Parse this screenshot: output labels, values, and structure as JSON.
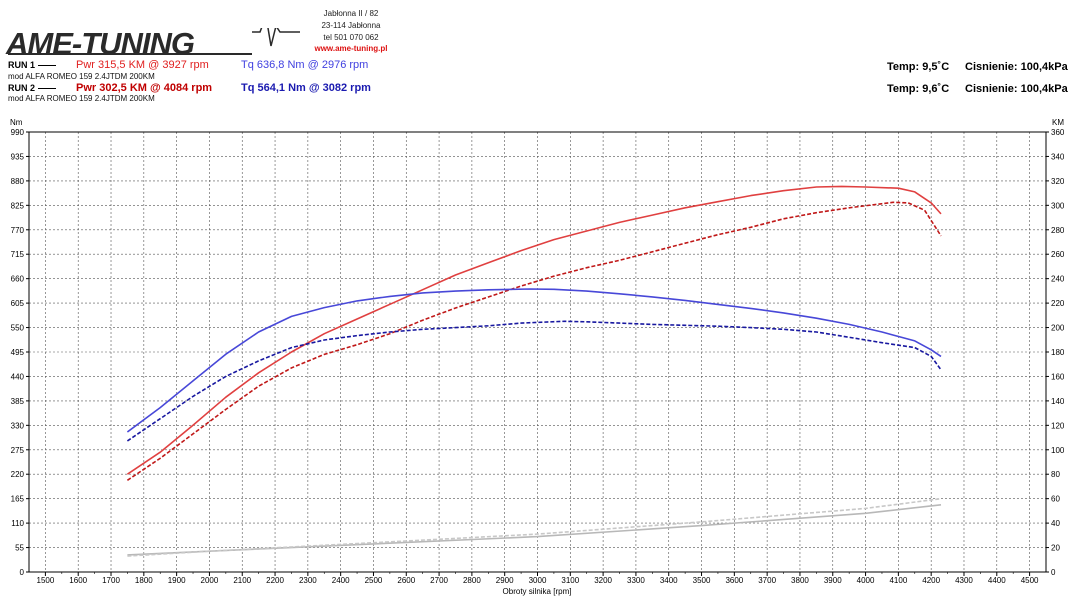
{
  "header": {
    "logo_text": "AME-TUNING",
    "address_line1": "Jabłonna II / 82",
    "address_line2": "23-114 Jabłonna",
    "phone": "tel 501 070 062",
    "website": "www.ame-tuning.pl"
  },
  "runs": [
    {
      "label": "RUN 1",
      "pwr": "Pwr  315,5 KM @ 3927 rpm",
      "tq": "Tq 636,8 Nm @ 2976 rpm",
      "car": "mod ALFA ROMEO 159 2.4JTDM 200KM",
      "temp": "Temp: 9,5˚C",
      "pressure": "Cisnienie: 100,4kPa"
    },
    {
      "label": "RUN 2",
      "pwr": "Pwr  302,5 KM @ 4084 rpm",
      "tq": "Tq 564,1 Nm @ 3082 rpm",
      "car": "mod ALFA ROMEO 159 2.4JTDM 200KM",
      "temp": "Temp: 9,6˚C",
      "pressure": "Cisnienie: 100,4kPa"
    }
  ],
  "colors": {
    "power_run1": "#e04040",
    "power_run2": "#c01818",
    "torque_run1": "#4848d8",
    "torque_run2": "#1818a0",
    "loss_run1": "#b8b8b8",
    "loss_run2": "#c8c8c8"
  },
  "chart_data": {
    "type": "line",
    "xlabel": "Obroty silnika [rpm]",
    "ylabel_left": "Nm",
    "ylabel_right": "KM",
    "xlim": [
      1450,
      4550
    ],
    "ylim_left": [
      0,
      990
    ],
    "ylim_right": [
      0,
      360
    ],
    "x_ticks": [
      1500,
      1600,
      1700,
      1800,
      1900,
      2000,
      2100,
      2200,
      2300,
      2400,
      2500,
      2600,
      2700,
      2800,
      2900,
      3000,
      3100,
      3200,
      3300,
      3400,
      3500,
      3600,
      3700,
      3800,
      3900,
      4000,
      4100,
      4200,
      4300,
      4400,
      4500
    ],
    "y_ticks_left": [
      0,
      55,
      110,
      165,
      220,
      275,
      330,
      385,
      440,
      495,
      550,
      605,
      660,
      715,
      770,
      825,
      880,
      935,
      990
    ],
    "y_ticks_right": [
      0,
      20,
      40,
      60,
      80,
      100,
      120,
      140,
      160,
      180,
      200,
      220,
      240,
      260,
      280,
      300,
      320,
      340,
      360
    ],
    "grid": true,
    "series": [
      {
        "name": "Pwr RUN 1",
        "axis": "right",
        "style": "solid",
        "color_key": "power_run1",
        "x": [
          1750,
          1850,
          1950,
          2050,
          2150,
          2250,
          2350,
          2450,
          2550,
          2650,
          2750,
          2850,
          2950,
          3050,
          3150,
          3250,
          3350,
          3450,
          3550,
          3650,
          3750,
          3850,
          3927,
          4000,
          4100,
          4150,
          4200,
          4230
        ],
        "y": [
          80,
          98,
          120,
          143,
          163,
          180,
          195,
          207,
          219,
          231,
          243,
          253,
          263,
          272,
          279,
          286,
          292,
          298,
          303,
          308,
          312,
          315,
          315.5,
          315,
          314,
          311,
          302,
          293
        ]
      },
      {
        "name": "Pwr RUN 2",
        "axis": "right",
        "style": "dashed",
        "color_key": "power_run2",
        "x": [
          1750,
          1850,
          1950,
          2050,
          2150,
          2250,
          2350,
          2450,
          2550,
          2650,
          2750,
          2850,
          2950,
          3050,
          3150,
          3250,
          3350,
          3450,
          3550,
          3650,
          3750,
          3850,
          3950,
          4084,
          4130,
          4180,
          4230
        ],
        "y": [
          75,
          93,
          113,
          133,
          152,
          167,
          178,
          186,
          195,
          206,
          216,
          225,
          234,
          242,
          249,
          255,
          262,
          269,
          276,
          282,
          289,
          294,
          298,
          302.5,
          302,
          296,
          275
        ]
      },
      {
        "name": "Tq RUN 1",
        "axis": "left",
        "style": "solid",
        "color_key": "torque_run1",
        "x": [
          1750,
          1850,
          1950,
          2050,
          2150,
          2250,
          2350,
          2450,
          2550,
          2650,
          2750,
          2850,
          2976,
          3050,
          3150,
          3250,
          3350,
          3450,
          3550,
          3650,
          3750,
          3850,
          3950,
          4050,
          4150,
          4200,
          4230
        ],
        "y": [
          315,
          370,
          430,
          490,
          540,
          575,
          595,
          610,
          620,
          628,
          632,
          635,
          636.8,
          636,
          632,
          626,
          619,
          611,
          602,
          593,
          583,
          571,
          557,
          540,
          520,
          500,
          485
        ]
      },
      {
        "name": "Tq RUN 2",
        "axis": "left",
        "style": "dashed",
        "color_key": "torque_run2",
        "x": [
          1750,
          1850,
          1950,
          2050,
          2150,
          2250,
          2350,
          2450,
          2550,
          2650,
          2750,
          2850,
          2950,
          3082,
          3150,
          3250,
          3350,
          3450,
          3550,
          3650,
          3750,
          3850,
          3950,
          4050,
          4150,
          4200,
          4230
        ],
        "y": [
          295,
          345,
          395,
          440,
          475,
          505,
          522,
          532,
          540,
          546,
          550,
          554,
          560,
          564.1,
          563,
          560,
          557,
          555,
          553,
          550,
          546,
          540,
          528,
          516,
          505,
          485,
          455
        ]
      },
      {
        "name": "Loss RUN 1",
        "axis": "right",
        "style": "solid",
        "color_key": "loss_run1",
        "x": [
          1750,
          2000,
          2500,
          3000,
          3500,
          4000,
          4230
        ],
        "y": [
          14,
          17,
          23,
          29,
          38,
          48,
          55
        ]
      },
      {
        "name": "Loss RUN 2",
        "axis": "right",
        "style": "dashed",
        "color_key": "loss_run2",
        "x": [
          1750,
          2000,
          2500,
          3000,
          3500,
          4000,
          4230
        ],
        "y": [
          13,
          17,
          24,
          31,
          41,
          52,
          60
        ]
      }
    ]
  }
}
